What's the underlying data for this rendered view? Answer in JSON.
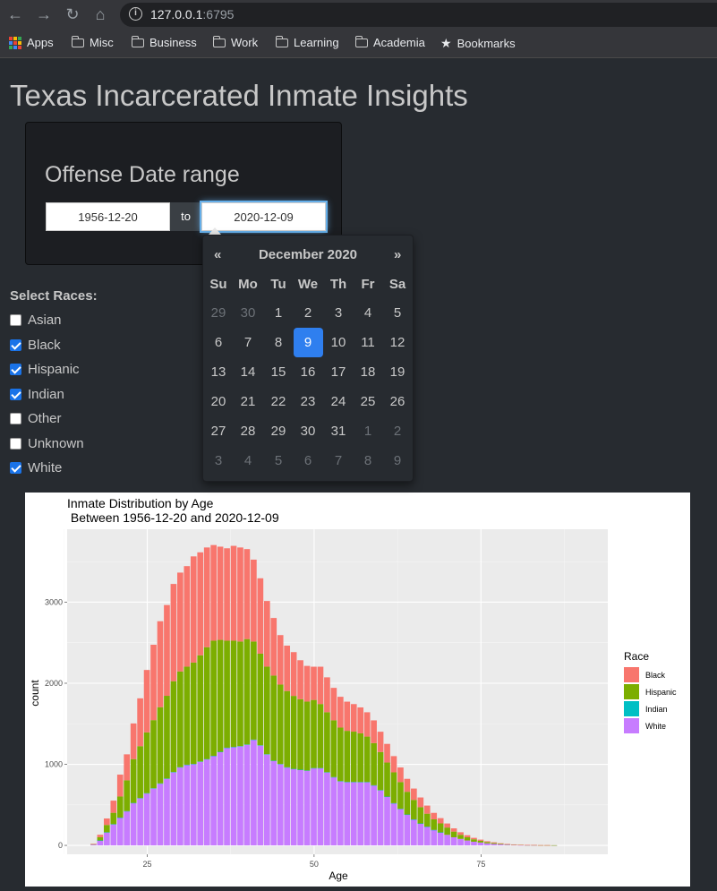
{
  "browser": {
    "url_host": "127.0.0.1",
    "url_port": ":6795",
    "bookmarks": [
      {
        "label": "Apps",
        "icon": "apps-grid-icon"
      },
      {
        "label": "Misc",
        "icon": "folder-icon"
      },
      {
        "label": "Business",
        "icon": "folder-icon"
      },
      {
        "label": "Work",
        "icon": "folder-icon"
      },
      {
        "label": "Learning",
        "icon": "folder-icon"
      },
      {
        "label": "Academia",
        "icon": "folder-icon"
      },
      {
        "label": "Bookmarks",
        "icon": "star-icon"
      }
    ]
  },
  "page": {
    "title": "Texas Incarcerated Inmate Insights"
  },
  "date_range": {
    "label": "Offense Date range",
    "start": "1956-12-20",
    "separator": "to",
    "end": "2020-12-09"
  },
  "datepicker": {
    "prev": "«",
    "next": "»",
    "month_title": "December 2020",
    "weekdays": [
      "Su",
      "Mo",
      "Tu",
      "We",
      "Th",
      "Fr",
      "Sa"
    ],
    "weeks": [
      [
        "29",
        "30",
        "1",
        "2",
        "3",
        "4",
        "5"
      ],
      [
        "6",
        "7",
        "8",
        "9",
        "10",
        "11",
        "12"
      ],
      [
        "13",
        "14",
        "15",
        "16",
        "17",
        "18",
        "19"
      ],
      [
        "20",
        "21",
        "22",
        "23",
        "24",
        "25",
        "26"
      ],
      [
        "27",
        "28",
        "29",
        "30",
        "31",
        "1",
        "2"
      ],
      [
        "3",
        "4",
        "5",
        "6",
        "7",
        "8",
        "9"
      ]
    ],
    "selected": "9"
  },
  "races": {
    "label": "Select Races:",
    "options": [
      {
        "label": "Asian",
        "checked": false
      },
      {
        "label": "Black",
        "checked": true
      },
      {
        "label": "Hispanic",
        "checked": true
      },
      {
        "label": "Indian",
        "checked": true
      },
      {
        "label": "Other",
        "checked": false
      },
      {
        "label": "Unknown",
        "checked": false
      },
      {
        "label": "White",
        "checked": true
      }
    ]
  },
  "chart_data": {
    "type": "bar",
    "title": "Inmate Distribution by Age",
    "subtitle": " Between 1956-12-20 and 2020-12-09",
    "xlabel": "Age",
    "ylabel": "count",
    "xlim": [
      13,
      94
    ],
    "ylim": [
      -110,
      3900
    ],
    "xticks": [
      25,
      50,
      75
    ],
    "yticks": [
      0,
      1000,
      2000,
      3000
    ],
    "grid": true,
    "stacked": true,
    "legend_title": "Race",
    "legend_position": "right",
    "x": [
      17,
      18,
      19,
      20,
      21,
      22,
      23,
      24,
      25,
      26,
      27,
      28,
      29,
      30,
      31,
      32,
      33,
      34,
      35,
      36,
      37,
      38,
      39,
      40,
      41,
      42,
      43,
      44,
      45,
      46,
      47,
      48,
      49,
      50,
      51,
      52,
      53,
      54,
      55,
      56,
      57,
      58,
      59,
      60,
      61,
      62,
      63,
      64,
      65,
      66,
      67,
      68,
      69,
      70,
      71,
      72,
      73,
      74,
      75,
      76,
      77,
      78,
      79,
      80,
      81,
      82,
      83,
      84,
      85,
      86,
      87,
      88,
      89,
      90
    ],
    "series": [
      {
        "name": "White",
        "color": "#c77cff",
        "values": [
          10,
          60,
          160,
          260,
          340,
          420,
          520,
          580,
          640,
          700,
          760,
          820,
          900,
          960,
          990,
          1000,
          1030,
          1060,
          1100,
          1150,
          1200,
          1210,
          1220,
          1240,
          1300,
          1230,
          1120,
          1040,
          1000,
          960,
          940,
          930,
          920,
          950,
          950,
          900,
          840,
          790,
          780,
          780,
          780,
          780,
          740,
          680,
          600,
          520,
          450,
          380,
          320,
          270,
          230,
          190,
          160,
          130,
          100,
          80,
          60,
          45,
          35,
          25,
          18,
          12,
          8,
          5,
          3,
          2,
          2,
          1,
          1,
          1,
          0,
          0,
          0,
          0
        ]
      },
      {
        "name": "Indian",
        "color": "#00bfc4",
        "values": [
          0,
          1,
          2,
          2,
          3,
          3,
          4,
          4,
          4,
          5,
          5,
          5,
          5,
          5,
          5,
          5,
          5,
          5,
          5,
          5,
          5,
          5,
          5,
          5,
          5,
          5,
          5,
          5,
          4,
          4,
          4,
          4,
          4,
          4,
          4,
          3,
          3,
          3,
          3,
          3,
          2,
          2,
          2,
          2,
          2,
          1,
          1,
          1,
          1,
          1,
          1,
          1,
          1,
          0,
          0,
          0,
          0,
          0,
          0,
          0,
          0,
          0,
          0,
          0,
          0,
          0,
          0,
          0,
          0,
          0,
          0,
          0,
          0,
          0
        ]
      },
      {
        "name": "Hispanic",
        "color": "#7cae00",
        "values": [
          5,
          40,
          90,
          140,
          260,
          380,
          540,
          640,
          750,
          840,
          940,
          1020,
          1120,
          1180,
          1210,
          1250,
          1310,
          1380,
          1420,
          1380,
          1320,
          1310,
          1290,
          1300,
          1210,
          1130,
          1080,
          1050,
          980,
          940,
          900,
          870,
          850,
          840,
          790,
          740,
          700,
          660,
          630,
          620,
          600,
          560,
          520,
          470,
          420,
          380,
          330,
          280,
          240,
          200,
          160,
          130,
          110,
          90,
          70,
          50,
          40,
          30,
          22,
          16,
          12,
          8,
          6,
          4,
          3,
          2,
          2,
          1,
          1,
          1,
          0,
          0,
          0,
          0
        ]
      },
      {
        "name": "Black",
        "color": "#f8766d",
        "values": [
          5,
          30,
          80,
          150,
          270,
          320,
          440,
          590,
          770,
          930,
          1060,
          1120,
          1200,
          1220,
          1240,
          1310,
          1270,
          1230,
          1180,
          1150,
          1140,
          1170,
          1160,
          1110,
          1010,
          930,
          810,
          710,
          610,
          560,
          540,
          480,
          440,
          410,
          460,
          430,
          400,
          380,
          360,
          340,
          320,
          300,
          280,
          250,
          230,
          200,
          180,
          160,
          140,
          120,
          100,
          80,
          65,
          50,
          40,
          32,
          25,
          18,
          14,
          10,
          8,
          6,
          4,
          3,
          2,
          2,
          1,
          1,
          1,
          0,
          0,
          0,
          0,
          0
        ]
      }
    ]
  }
}
